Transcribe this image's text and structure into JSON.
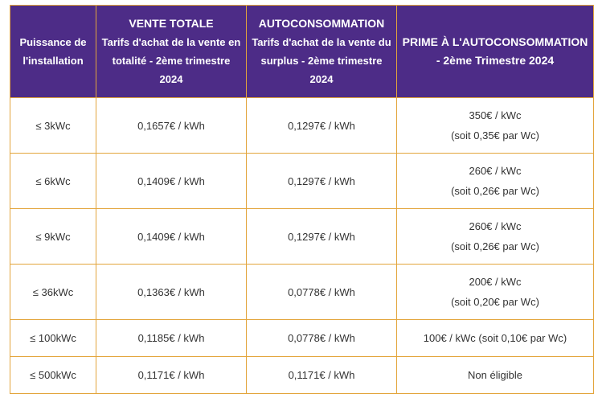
{
  "headers": {
    "power": {
      "line1": "Puissance de l'installation"
    },
    "vente": {
      "title": "VENTE TOTALE",
      "sub": "Tarifs d'achat de la vente en totalité - 2ème trimestre 2024"
    },
    "autoconso": {
      "title": "AUTOCONSOMMATION",
      "sub": "Tarifs d'achat de la vente du surplus - 2ème trimestre 2024"
    },
    "prime": {
      "title": "PRIME À L'AUTOCONSOMMATION - 2ème Trimestre 2024"
    }
  },
  "rows": [
    {
      "power": "≤ 3kWc",
      "vente": "0,1657€ / kWh",
      "autoconso": "0,1297€ / kWh",
      "prime_line1": "350€ / kWc",
      "prime_line2": "(soit 0,35€ par Wc)"
    },
    {
      "power": "≤ 6kWc",
      "vente": "0,1409€ / kWh",
      "autoconso": "0,1297€ / kWh",
      "prime_line1": "260€ / kWc",
      "prime_line2": "(soit 0,26€ par Wc)"
    },
    {
      "power": "≤ 9kWc",
      "vente": "0,1409€ / kWh",
      "autoconso": "0,1297€ / kWh",
      "prime_line1": "260€ / kWc",
      "prime_line2": "(soit 0,26€ par Wc)"
    },
    {
      "power": "≤ 36kWc",
      "vente": "0,1363€ / kWh",
      "autoconso": "0,0778€ / kWh",
      "prime_line1": "200€ / kWc",
      "prime_line2": "(soit 0,20€ par Wc)"
    },
    {
      "power": "≤ 100kWc",
      "vente": "0,1185€ / kWh",
      "autoconso": "0,0778€ / kWh",
      "prime_line1": "100€ / kWc (soit 0,10€ par Wc)",
      "prime_line2": ""
    },
    {
      "power": "≤ 500kWc",
      "vente": "0,1171€ / kWh",
      "autoconso": "0,1171€ / kWh",
      "prime_line1": "Non éligible",
      "prime_line2": ""
    }
  ],
  "colors": {
    "header_bg": "#4d2c87",
    "border": "#e3a53c",
    "text": "#333333"
  }
}
